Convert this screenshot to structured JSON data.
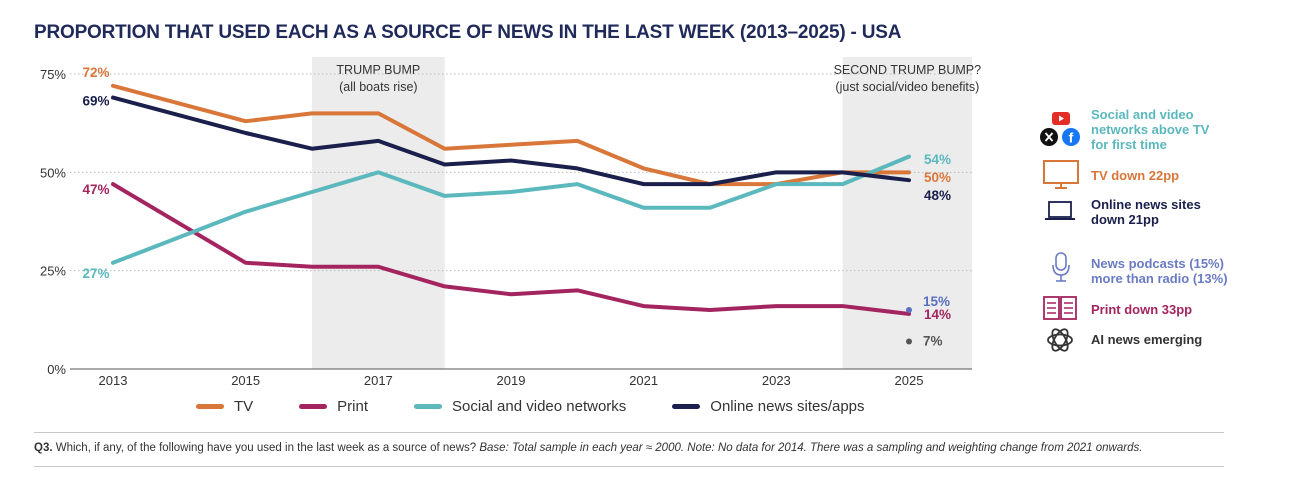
{
  "title": "PROPORTION THAT USED EACH AS A SOURCE OF NEWS IN THE LAST WEEK (2013–2025) - USA",
  "chart_data": {
    "type": "line",
    "x": [
      2013,
      2015,
      2016,
      2017,
      2018,
      2019,
      2020,
      2021,
      2022,
      2023,
      2024,
      2025
    ],
    "xticks": [
      "2013",
      "2015",
      "2017",
      "2019",
      "2021",
      "2023",
      "2025"
    ],
    "ylim": [
      0,
      75
    ],
    "yticks": [
      "0%",
      "25%",
      "50%",
      "75%"
    ],
    "series": [
      {
        "name": "TV",
        "color": "#d9773a",
        "values": [
          72,
          63,
          65,
          65,
          56,
          57,
          58,
          51,
          47,
          47,
          50,
          50
        ],
        "end_label": "50%",
        "start_label": "72%"
      },
      {
        "name": "Print",
        "color": "#a3245f",
        "values": [
          47,
          27,
          26,
          26,
          21,
          19,
          20,
          16,
          15,
          16,
          16,
          14
        ],
        "end_label": "14%",
        "start_label": "47%"
      },
      {
        "name": "Social and video networks",
        "color": "#5bb8bd",
        "values": [
          27,
          40,
          45,
          50,
          44,
          45,
          47,
          41,
          41,
          47,
          47,
          54
        ],
        "end_label": "54%",
        "start_label": "27%"
      },
      {
        "name": "Online news sites/apps",
        "color": "#1b1f4b",
        "values": [
          69,
          60,
          56,
          58,
          52,
          53,
          51,
          47,
          47,
          50,
          50,
          48
        ],
        "end_label": "48%",
        "start_label": "69%"
      }
    ],
    "points": [
      {
        "x": 2025,
        "y": 15,
        "label": "15%",
        "color": "#5a6fc0"
      },
      {
        "x": 2025,
        "y": 7,
        "label": "7%",
        "color": "#555555"
      }
    ],
    "shaded_regions": [
      {
        "from": 2016,
        "to": 2018,
        "label_line1": "TRUMP BUMP",
        "label_line2": "(all boats rise)"
      },
      {
        "from": 2024,
        "to": 2026,
        "label_line1": "SECOND TRUMP BUMP?",
        "label_line2": "(just social/video benefits)"
      }
    ]
  },
  "annotations": [
    {
      "icons": [
        "youtube-icon",
        "x-icon",
        "facebook-icon"
      ],
      "line1": "Social and video",
      "line2": "networks above TV",
      "line3": "for first time",
      "color": "#5bb8bd"
    },
    {
      "icons": [
        "tv-icon"
      ],
      "line1": "TV down 22pp",
      "color": "#d9773a"
    },
    {
      "icons": [
        "laptop-icon"
      ],
      "line1": "Online news sites",
      "line2": "down 21pp",
      "color": "#1b1f4b"
    },
    {
      "icons": [
        "microphone-icon"
      ],
      "line1": "News podcasts (15%)",
      "line2": "more than radio (13%)",
      "color": "#6a7bc4"
    },
    {
      "icons": [
        "newspaper-icon"
      ],
      "line1": "Print down 33pp",
      "color": "#a3245f"
    },
    {
      "icons": [
        "ai-icon"
      ],
      "line1": "AI news emerging",
      "color": "#333333"
    }
  ],
  "footnote": {
    "q": "Q3.",
    "question": " Which, if any, of the following have you used in the last week as a source of news? ",
    "note": "Base: Total sample in each year ≈ 2000. Note: No data for 2014. There was a sampling and weighting change from 2021 onwards."
  }
}
